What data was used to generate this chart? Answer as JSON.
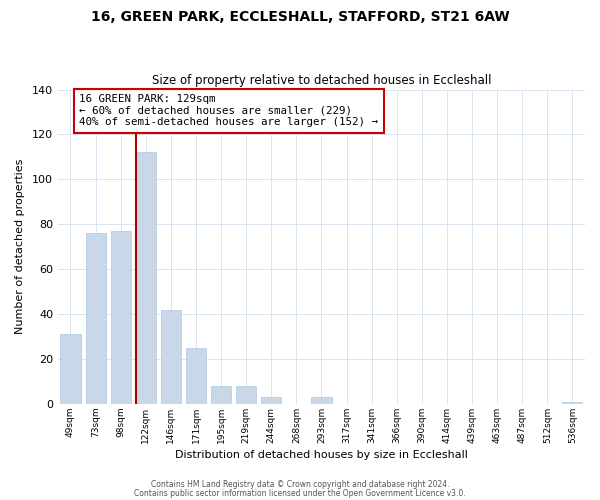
{
  "title": "16, GREEN PARK, ECCLESHALL, STAFFORD, ST21 6AW",
  "subtitle": "Size of property relative to detached houses in Eccleshall",
  "xlabel": "Distribution of detached houses by size in Eccleshall",
  "ylabel": "Number of detached properties",
  "bar_labels": [
    "49sqm",
    "73sqm",
    "98sqm",
    "122sqm",
    "146sqm",
    "171sqm",
    "195sqm",
    "219sqm",
    "244sqm",
    "268sqm",
    "293sqm",
    "317sqm",
    "341sqm",
    "366sqm",
    "390sqm",
    "414sqm",
    "439sqm",
    "463sqm",
    "487sqm",
    "512sqm",
    "536sqm"
  ],
  "bar_values": [
    31,
    76,
    77,
    112,
    42,
    25,
    8,
    8,
    3,
    0,
    3,
    0,
    0,
    0,
    0,
    0,
    0,
    0,
    0,
    0,
    1
  ],
  "bar_color": "#c8d8e8",
  "bar_edge_color": "#b0c8e0",
  "vline_bar_index": 3,
  "vline_color": "#aa0000",
  "ylim": [
    0,
    140
  ],
  "yticks": [
    0,
    20,
    40,
    60,
    80,
    100,
    120,
    140
  ],
  "annotation_line1": "16 GREEN PARK: 129sqm",
  "annotation_line2": "← 60% of detached houses are smaller (229)",
  "annotation_line3": "40% of semi-detached houses are larger (152) →",
  "annotation_box_color": "#ffffff",
  "annotation_box_edge": "#cc0000",
  "footer1": "Contains HM Land Registry data © Crown copyright and database right 2024.",
  "footer2": "Contains public sector information licensed under the Open Government Licence v3.0.",
  "background_color": "#ffffff",
  "grid_color": "#d8e4f0"
}
